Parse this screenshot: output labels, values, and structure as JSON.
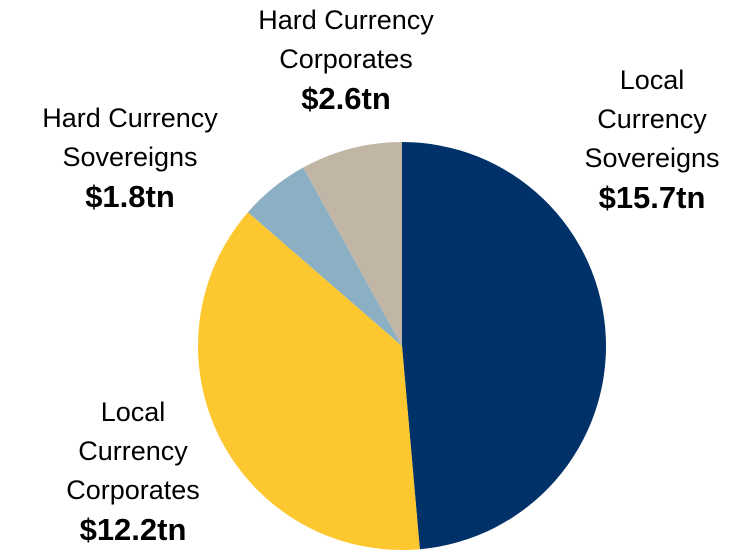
{
  "chart_data": {
    "type": "pie",
    "categories": [
      "Local Currency Sovereigns",
      "Local Currency Corporates",
      "Hard Currency Sovereigns",
      "Hard Currency Corporates"
    ],
    "values": [
      15.7,
      12.2,
      1.8,
      2.6
    ],
    "value_labels": [
      "$15.7tn",
      "$12.2tn",
      "$1.8tn",
      "$2.6tn"
    ],
    "colors": [
      "#003168",
      "#fdc72f",
      "#8bb0c3",
      "#c1b5a6"
    ]
  }
}
